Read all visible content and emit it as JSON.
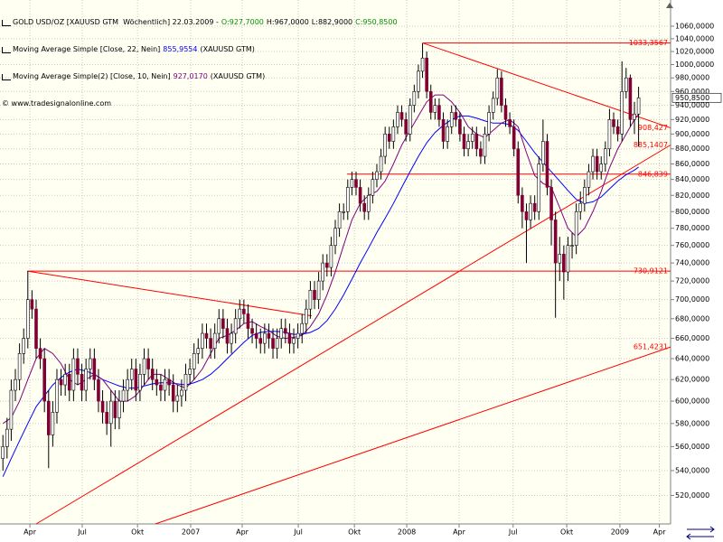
{
  "header": {
    "symbol": "GOLD USD/OZ [XAUUSD GTM  Wöchentlich] 22.03.2009 -",
    "ohlc": [
      {
        "text": "O:927,7000",
        "color": "#009000"
      },
      {
        "text": "H:967,0000",
        "color": "#000000"
      },
      {
        "text": "L:882,9000",
        "color": "#000000"
      },
      {
        "text": "C:950,8500",
        "color": "#009000"
      }
    ],
    "indicators": [
      {
        "text": "Moving Average Simple [Close, 22, Nein]",
        "value": "855,9554",
        "source": "(XAUUSD GTM)",
        "color": "#0000ff"
      },
      {
        "text": "Moving Average Simple(2) [Close, 10, Nein]",
        "value": "927,0170",
        "source": "(XAUUSD GTM)",
        "color": "#800080"
      }
    ],
    "copyright": "© www.tradesignalonline.com"
  },
  "chart_data": {
    "type": "candlestick",
    "xlim": [
      -0.7,
      160.7
    ],
    "xticks": [
      {
        "value": 6.5,
        "label": "Apr"
      },
      {
        "value": 19.1,
        "label": "Jul"
      },
      {
        "value": 32.4,
        "label": "Okt"
      },
      {
        "value": 45.2,
        "label": "2007"
      },
      {
        "value": 57.6,
        "label": "Apr"
      },
      {
        "value": 71.1,
        "label": "Jul"
      },
      {
        "value": 84.6,
        "label": "Okt"
      },
      {
        "value": 97.2,
        "label": "2008"
      },
      {
        "value": 109.8,
        "label": "Apr"
      },
      {
        "value": 122.8,
        "label": "Jul"
      },
      {
        "value": 135.7,
        "label": "Okt"
      },
      {
        "value": 148.5,
        "label": "2009"
      },
      {
        "value": 158.0,
        "label": "Apr"
      }
    ],
    "ylim": [
      498,
      1103
    ],
    "log_y": true,
    "yticks": [
      {
        "value": 520,
        "label": "520,0000"
      },
      {
        "value": 540,
        "label": "540,0000"
      },
      {
        "value": 560,
        "label": "560,0000"
      },
      {
        "value": 580,
        "label": "580,0000"
      },
      {
        "value": 600,
        "label": "600,0000"
      },
      {
        "value": 620,
        "label": "620,0000"
      },
      {
        "value": 640,
        "label": "640,0000"
      },
      {
        "value": 660,
        "label": "660,0000"
      },
      {
        "value": 680,
        "label": "680,0000"
      },
      {
        "value": 700,
        "label": "700,0000"
      },
      {
        "value": 720,
        "label": "720,0000"
      },
      {
        "value": 740,
        "label": "740,0000"
      },
      {
        "value": 760,
        "label": "760,0000"
      },
      {
        "value": 780,
        "label": "780,0000"
      },
      {
        "value": 800,
        "label": "800,0000"
      },
      {
        "value": 820,
        "label": "820,0000"
      },
      {
        "value": 840,
        "label": "840,0000"
      },
      {
        "value": 860,
        "label": "860,0000"
      },
      {
        "value": 880,
        "label": "880,0000"
      },
      {
        "value": 900,
        "label": "900,0000"
      },
      {
        "value": 920,
        "label": "920,0000"
      },
      {
        "value": 940,
        "label": "940,0000"
      },
      {
        "value": 960,
        "label": "960,0000"
      },
      {
        "value": 980,
        "label": "980,0000"
      },
      {
        "value": 1000,
        "label": "1000,0000"
      },
      {
        "value": 1020,
        "label": "1020,0000"
      },
      {
        "value": 1040,
        "label": "1040,0000"
      },
      {
        "value": 1060,
        "label": "1060,0000"
      }
    ],
    "grid": true,
    "up_color": "#ffffff",
    "down_color": "#800033",
    "open": [
      550,
      560,
      575,
      610,
      620,
      645,
      660,
      700,
      690,
      650,
      640,
      600,
      570,
      590,
      620,
      615,
      625,
      610,
      640,
      625,
      610,
      630,
      640,
      620,
      600,
      590,
      580,
      600,
      585,
      600,
      610,
      620,
      630,
      610,
      625,
      640,
      630,
      620,
      615,
      610,
      620,
      615,
      600,
      605,
      610,
      625,
      630,
      645,
      650,
      665,
      660,
      650,
      665,
      680,
      670,
      655,
      665,
      680,
      690,
      685,
      670,
      665,
      660,
      655,
      665,
      660,
      650,
      660,
      670,
      665,
      655,
      660,
      665,
      675,
      690,
      710,
      700,
      720,
      740,
      735,
      760,
      780,
      800,
      800,
      830,
      840,
      830,
      810,
      800,
      820,
      840,
      850,
      870,
      900,
      890,
      910,
      930,
      920,
      900,
      940,
      960,
      990,
      1010,
      960,
      930,
      940,
      920,
      890,
      910,
      930,
      920,
      900,
      880,
      890,
      900,
      880,
      870,
      900,
      930,
      950,
      980,
      940,
      920,
      910,
      880,
      820,
      800,
      790,
      810,
      800,
      860,
      890,
      830,
      790,
      740,
      750,
      730,
      760,
      760,
      800,
      810,
      830,
      850,
      870,
      850,
      860,
      880,
      920,
      910,
      900,
      960,
      980,
      920,
      927.7
    ],
    "high": [
      570,
      585,
      620,
      630,
      655,
      670,
      731,
      710,
      700,
      660,
      650,
      610,
      600,
      630,
      630,
      635,
      635,
      650,
      650,
      635,
      640,
      650,
      650,
      630,
      610,
      600,
      610,
      610,
      610,
      620,
      630,
      640,
      640,
      635,
      650,
      650,
      640,
      630,
      625,
      630,
      630,
      625,
      615,
      620,
      635,
      640,
      655,
      660,
      675,
      675,
      670,
      675,
      690,
      690,
      680,
      675,
      690,
      700,
      700,
      695,
      680,
      675,
      670,
      675,
      675,
      670,
      670,
      680,
      680,
      675,
      670,
      675,
      685,
      700,
      720,
      720,
      730,
      750,
      750,
      770,
      790,
      810,
      810,
      840,
      850,
      850,
      840,
      820,
      830,
      850,
      860,
      880,
      910,
      910,
      920,
      940,
      940,
      930,
      950,
      970,
      1000,
      1033,
      1020,
      970,
      950,
      950,
      930,
      920,
      940,
      940,
      930,
      910,
      900,
      910,
      910,
      890,
      910,
      940,
      960,
      993,
      990,
      950,
      930,
      920,
      890,
      830,
      810,
      820,
      820,
      870,
      920,
      900,
      840,
      800,
      770,
      760,
      770,
      775,
      810,
      825,
      840,
      860,
      880,
      880,
      870,
      890,
      935,
      930,
      920,
      1005,
      995,
      985,
      945,
      967
    ],
    "low": [
      540,
      550,
      565,
      600,
      610,
      635,
      650,
      680,
      640,
      630,
      590,
      542,
      560,
      580,
      605,
      605,
      600,
      600,
      615,
      600,
      600,
      620,
      610,
      590,
      580,
      570,
      560,
      575,
      575,
      590,
      600,
      610,
      600,
      600,
      615,
      620,
      610,
      605,
      600,
      600,
      605,
      590,
      590,
      595,
      600,
      615,
      620,
      635,
      640,
      650,
      640,
      640,
      655,
      660,
      645,
      645,
      655,
      670,
      675,
      660,
      655,
      650,
      645,
      645,
      650,
      640,
      640,
      650,
      655,
      645,
      645,
      650,
      655,
      665,
      680,
      690,
      690,
      710,
      725,
      725,
      750,
      770,
      790,
      790,
      820,
      820,
      800,
      790,
      790,
      810,
      830,
      840,
      860,
      880,
      880,
      900,
      910,
      890,
      890,
      930,
      950,
      980,
      950,
      920,
      920,
      910,
      880,
      880,
      900,
      910,
      890,
      870,
      870,
      880,
      870,
      860,
      860,
      890,
      920,
      940,
      930,
      910,
      900,
      870,
      810,
      780,
      740,
      780,
      790,
      790,
      850,
      820,
      760,
      681,
      720,
      700,
      720,
      745,
      750,
      790,
      800,
      820,
      840,
      840,
      840,
      850,
      870,
      900,
      890,
      890,
      950,
      910,
      900,
      882.9
    ],
    "close": [
      560,
      575,
      610,
      620,
      645,
      660,
      700,
      690,
      650,
      640,
      600,
      570,
      590,
      620,
      615,
      625,
      610,
      640,
      625,
      610,
      630,
      640,
      620,
      600,
      590,
      580,
      600,
      585,
      600,
      610,
      620,
      630,
      610,
      625,
      640,
      630,
      620,
      615,
      610,
      620,
      615,
      600,
      605,
      610,
      625,
      630,
      645,
      650,
      665,
      660,
      650,
      665,
      680,
      670,
      655,
      665,
      680,
      690,
      685,
      670,
      665,
      660,
      655,
      665,
      660,
      650,
      660,
      670,
      665,
      655,
      660,
      665,
      675,
      690,
      710,
      700,
      720,
      740,
      735,
      760,
      780,
      800,
      800,
      830,
      840,
      830,
      810,
      800,
      820,
      840,
      850,
      870,
      900,
      890,
      910,
      930,
      920,
      900,
      940,
      960,
      990,
      1010,
      960,
      930,
      940,
      920,
      890,
      910,
      930,
      920,
      900,
      880,
      890,
      900,
      880,
      870,
      900,
      930,
      950,
      980,
      940,
      920,
      910,
      880,
      820,
      800,
      790,
      810,
      800,
      860,
      890,
      830,
      790,
      740,
      750,
      730,
      760,
      760,
      800,
      810,
      830,
      850,
      870,
      850,
      860,
      880,
      920,
      910,
      900,
      960,
      980,
      920,
      927.7,
      950.85
    ],
    "series": [
      {
        "color": "#0000ff",
        "x": [
          0,
          2,
          4,
          6,
          8,
          10,
          12,
          14,
          16,
          18,
          20,
          22,
          24,
          26,
          28,
          30,
          32,
          34,
          36,
          38,
          40,
          42,
          44,
          46,
          48,
          50,
          52,
          54,
          56,
          58,
          60,
          62,
          64,
          66,
          68,
          70,
          72,
          74,
          76,
          78,
          80,
          82,
          84,
          86,
          88,
          90,
          92,
          94,
          96,
          98,
          100,
          102,
          104,
          106,
          108,
          110,
          112,
          114,
          116,
          118,
          120,
          122,
          124,
          126,
          128,
          130,
          132,
          134,
          136,
          138,
          140,
          142,
          144,
          146,
          148,
          150,
          152,
          153
        ],
        "values": [
          535,
          550,
          565,
          580,
          595,
          605,
          615,
          622,
          627,
          630,
          628,
          625,
          620,
          617,
          614,
          612,
          612,
          614,
          616,
          617,
          617,
          616,
          615,
          617,
          620,
          625,
          632,
          640,
          648,
          656,
          663,
          666,
          667,
          667,
          666,
          664,
          664,
          666,
          670,
          678,
          690,
          705,
          722,
          740,
          757,
          775,
          792,
          810,
          830,
          850,
          870,
          888,
          902,
          912,
          920,
          925,
          925,
          922,
          918,
          915,
          915,
          913,
          905,
          890,
          875,
          862,
          850,
          838,
          826,
          815,
          810,
          812,
          818,
          828,
          838,
          846,
          852,
          855.9554
        ]
      },
      {
        "color": "#800080",
        "x": [
          0,
          2,
          4,
          6,
          8,
          10,
          12,
          14,
          16,
          18,
          20,
          22,
          24,
          26,
          28,
          30,
          32,
          34,
          36,
          38,
          40,
          42,
          44,
          46,
          48,
          50,
          52,
          54,
          56,
          58,
          60,
          62,
          64,
          66,
          68,
          70,
          72,
          74,
          76,
          78,
          80,
          82,
          84,
          86,
          88,
          90,
          92,
          94,
          96,
          98,
          100,
          102,
          104,
          106,
          108,
          110,
          112,
          114,
          116,
          118,
          120,
          122,
          124,
          126,
          128,
          130,
          132,
          134,
          136,
          138,
          140,
          142,
          144,
          146,
          148,
          150,
          152,
          153
        ],
        "values": [
          580,
          585,
          600,
          620,
          640,
          650,
          645,
          635,
          620,
          615,
          620,
          625,
          620,
          610,
          600,
          600,
          605,
          615,
          625,
          625,
          620,
          615,
          612,
          620,
          630,
          645,
          660,
          663,
          668,
          675,
          677,
          672,
          668,
          662,
          660,
          661,
          663,
          672,
          685,
          705,
          730,
          760,
          790,
          810,
          820,
          825,
          838,
          860,
          885,
          905,
          925,
          945,
          955,
          955,
          945,
          930,
          910,
          900,
          895,
          905,
          915,
          920,
          910,
          875,
          845,
          835,
          830,
          805,
          780,
          770,
          780,
          800,
          825,
          855,
          880,
          900,
          920,
          927.017
        ]
      }
    ],
    "trendline_color": "#ff0000",
    "trendlines": [
      {
        "x": [
          101,
          160.7
        ],
        "y": [
          1033.3567,
          1033.3567
        ],
        "label": "1033,3567"
      },
      {
        "x": [
          101,
          160.7
        ],
        "y": [
          1033.3567,
          908.427
        ],
        "label": "908,427"
      },
      {
        "x": [
          8,
          160.7
        ],
        "y": [
          498,
          885.1407
        ],
        "label": "885,1407"
      },
      {
        "x": [
          82.8,
          160.7
        ],
        "y": [
          846.839,
          846.839
        ],
        "label": "846,839"
      },
      {
        "x": [
          5.9,
          160.7
        ],
        "y": [
          730.9121,
          730.9121
        ],
        "label": "730,9121"
      },
      {
        "x": [
          36.7,
          160.7
        ],
        "y": [
          498,
          651.4231
        ],
        "label": "651,4231"
      },
      {
        "x": [
          5.9,
          74.3
        ],
        "y": [
          730.9121,
          683
        ]
      }
    ],
    "last_price": {
      "value": 950.85,
      "label": "950,8500"
    }
  }
}
